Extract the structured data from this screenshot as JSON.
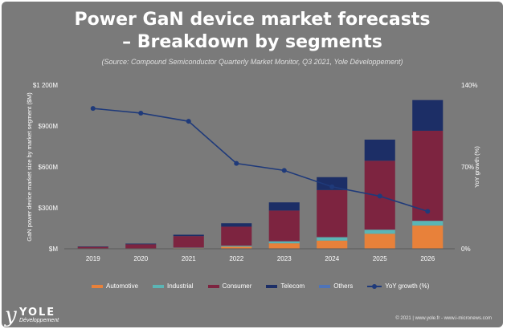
{
  "header": {
    "title_line1": "Power GaN device market forecasts",
    "title_line2": "– Breakdown by segments",
    "source": "(Source: Compound Semiconductor Quarterly Market Monitor, Q3 2021, Yole Développement)"
  },
  "chart_data": {
    "type": "bar",
    "stacked": true,
    "categories": [
      "2019",
      "2020",
      "2021",
      "2022",
      "2023",
      "2024",
      "2025",
      "2026"
    ],
    "series": [
      {
        "name": "Automotive",
        "color": "#e8813a",
        "values": [
          1,
          2,
          5,
          15,
          40,
          60,
          110,
          170
        ]
      },
      {
        "name": "Industrial",
        "color": "#5bb5b5",
        "values": [
          1,
          1,
          3,
          7,
          15,
          25,
          30,
          35
        ]
      },
      {
        "name": "Consumer",
        "color": "#7d2440",
        "values": [
          12,
          30,
          85,
          140,
          225,
          345,
          505,
          660
        ]
      },
      {
        "name": "Telecom",
        "color": "#1c2e66",
        "values": [
          3,
          5,
          10,
          25,
          60,
          95,
          155,
          225
        ]
      },
      {
        "name": "Others",
        "color": "#4f74b8",
        "values": [
          0,
          0,
          0,
          0,
          0,
          0,
          0,
          0
        ]
      }
    ],
    "line": {
      "name": "YoY growth (%)",
      "color": "#1f3a7a",
      "values": [
        120,
        116,
        109,
        73,
        67,
        53,
        45,
        32
      ]
    },
    "ylabel": "GaN power device market size by market segment ($M)",
    "y2label": "YoY growth (%)",
    "ylim": [
      0,
      1200
    ],
    "y2lim": [
      0,
      140
    ],
    "yticks": [
      "$M",
      "$300M",
      "$600M",
      "$900M",
      "$1 200M"
    ],
    "y2ticks": [
      "0%",
      "70%",
      "140%"
    ],
    "grid": false,
    "legend_position": "bottom"
  },
  "footer": {
    "logo_mark": "y",
    "logo_word": "YOLE",
    "logo_sub": "Développement",
    "copyright": "© 2021 | www.yole.fr - www.i-micronews.com"
  }
}
